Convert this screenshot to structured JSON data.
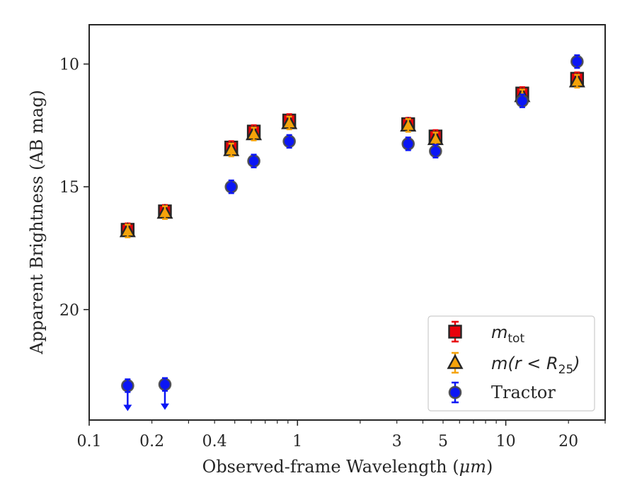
{
  "chart_data": {
    "type": "scatter",
    "xlabel_main": "Observed-frame Wavelength (",
    "xlabel_unit": "μm",
    "xlabel_end": ")",
    "ylabel": "Apparent Brightness (AB mag)",
    "xscale": "log",
    "xlim": [
      0.1,
      30
    ],
    "ylim": [
      24.5,
      8.4
    ],
    "y_inverted": true,
    "x_ticks": [
      0.1,
      0.2,
      0.4,
      1,
      3,
      5,
      10,
      20
    ],
    "x_tick_labels": [
      "0.1",
      "0.2",
      "0.4",
      "1",
      "3",
      "5",
      "10",
      "20"
    ],
    "y_ticks": [
      10,
      15,
      20
    ],
    "y_tick_labels": [
      "10",
      "15",
      "20"
    ],
    "legend_position": "lower-right",
    "series": [
      {
        "name": "m_tot",
        "legend_main": "m",
        "legend_sub": "tot",
        "marker": "square",
        "color": "#e8000b",
        "points": [
          {
            "x": 0.153,
            "y": 16.75
          },
          {
            "x": 0.231,
            "y": 16.0
          },
          {
            "x": 0.481,
            "y": 13.4
          },
          {
            "x": 0.617,
            "y": 12.75
          },
          {
            "x": 0.913,
            "y": 12.3
          },
          {
            "x": 3.4,
            "y": 12.45
          },
          {
            "x": 4.6,
            "y": 12.95
          },
          {
            "x": 12.0,
            "y": 11.2
          },
          {
            "x": 22.0,
            "y": 10.6
          }
        ]
      },
      {
        "name": "m(r<R25)",
        "legend_main": "m(r < R",
        "legend_sub": "25",
        "legend_end": ")",
        "marker": "triangle",
        "color": "#f5a30a",
        "points": [
          {
            "x": 0.153,
            "y": 16.8
          },
          {
            "x": 0.231,
            "y": 16.05
          },
          {
            "x": 0.481,
            "y": 13.5
          },
          {
            "x": 0.617,
            "y": 12.85
          },
          {
            "x": 0.913,
            "y": 12.4
          },
          {
            "x": 3.4,
            "y": 12.5
          },
          {
            "x": 4.6,
            "y": 13.05
          },
          {
            "x": 12.0,
            "y": 11.3
          },
          {
            "x": 22.0,
            "y": 10.7
          }
        ]
      },
      {
        "name": "Tractor",
        "legend_main": "Tractor",
        "marker": "circle",
        "color": "#0b16f5",
        "points": [
          {
            "x": 0.153,
            "y": 23.1,
            "upper_limit": true
          },
          {
            "x": 0.231,
            "y": 23.05,
            "upper_limit": true
          },
          {
            "x": 0.481,
            "y": 15.0
          },
          {
            "x": 0.617,
            "y": 13.95
          },
          {
            "x": 0.913,
            "y": 13.15
          },
          {
            "x": 3.4,
            "y": 13.25
          },
          {
            "x": 4.6,
            "y": 13.55
          },
          {
            "x": 12.0,
            "y": 11.5
          },
          {
            "x": 22.0,
            "y": 9.9
          }
        ]
      }
    ]
  }
}
